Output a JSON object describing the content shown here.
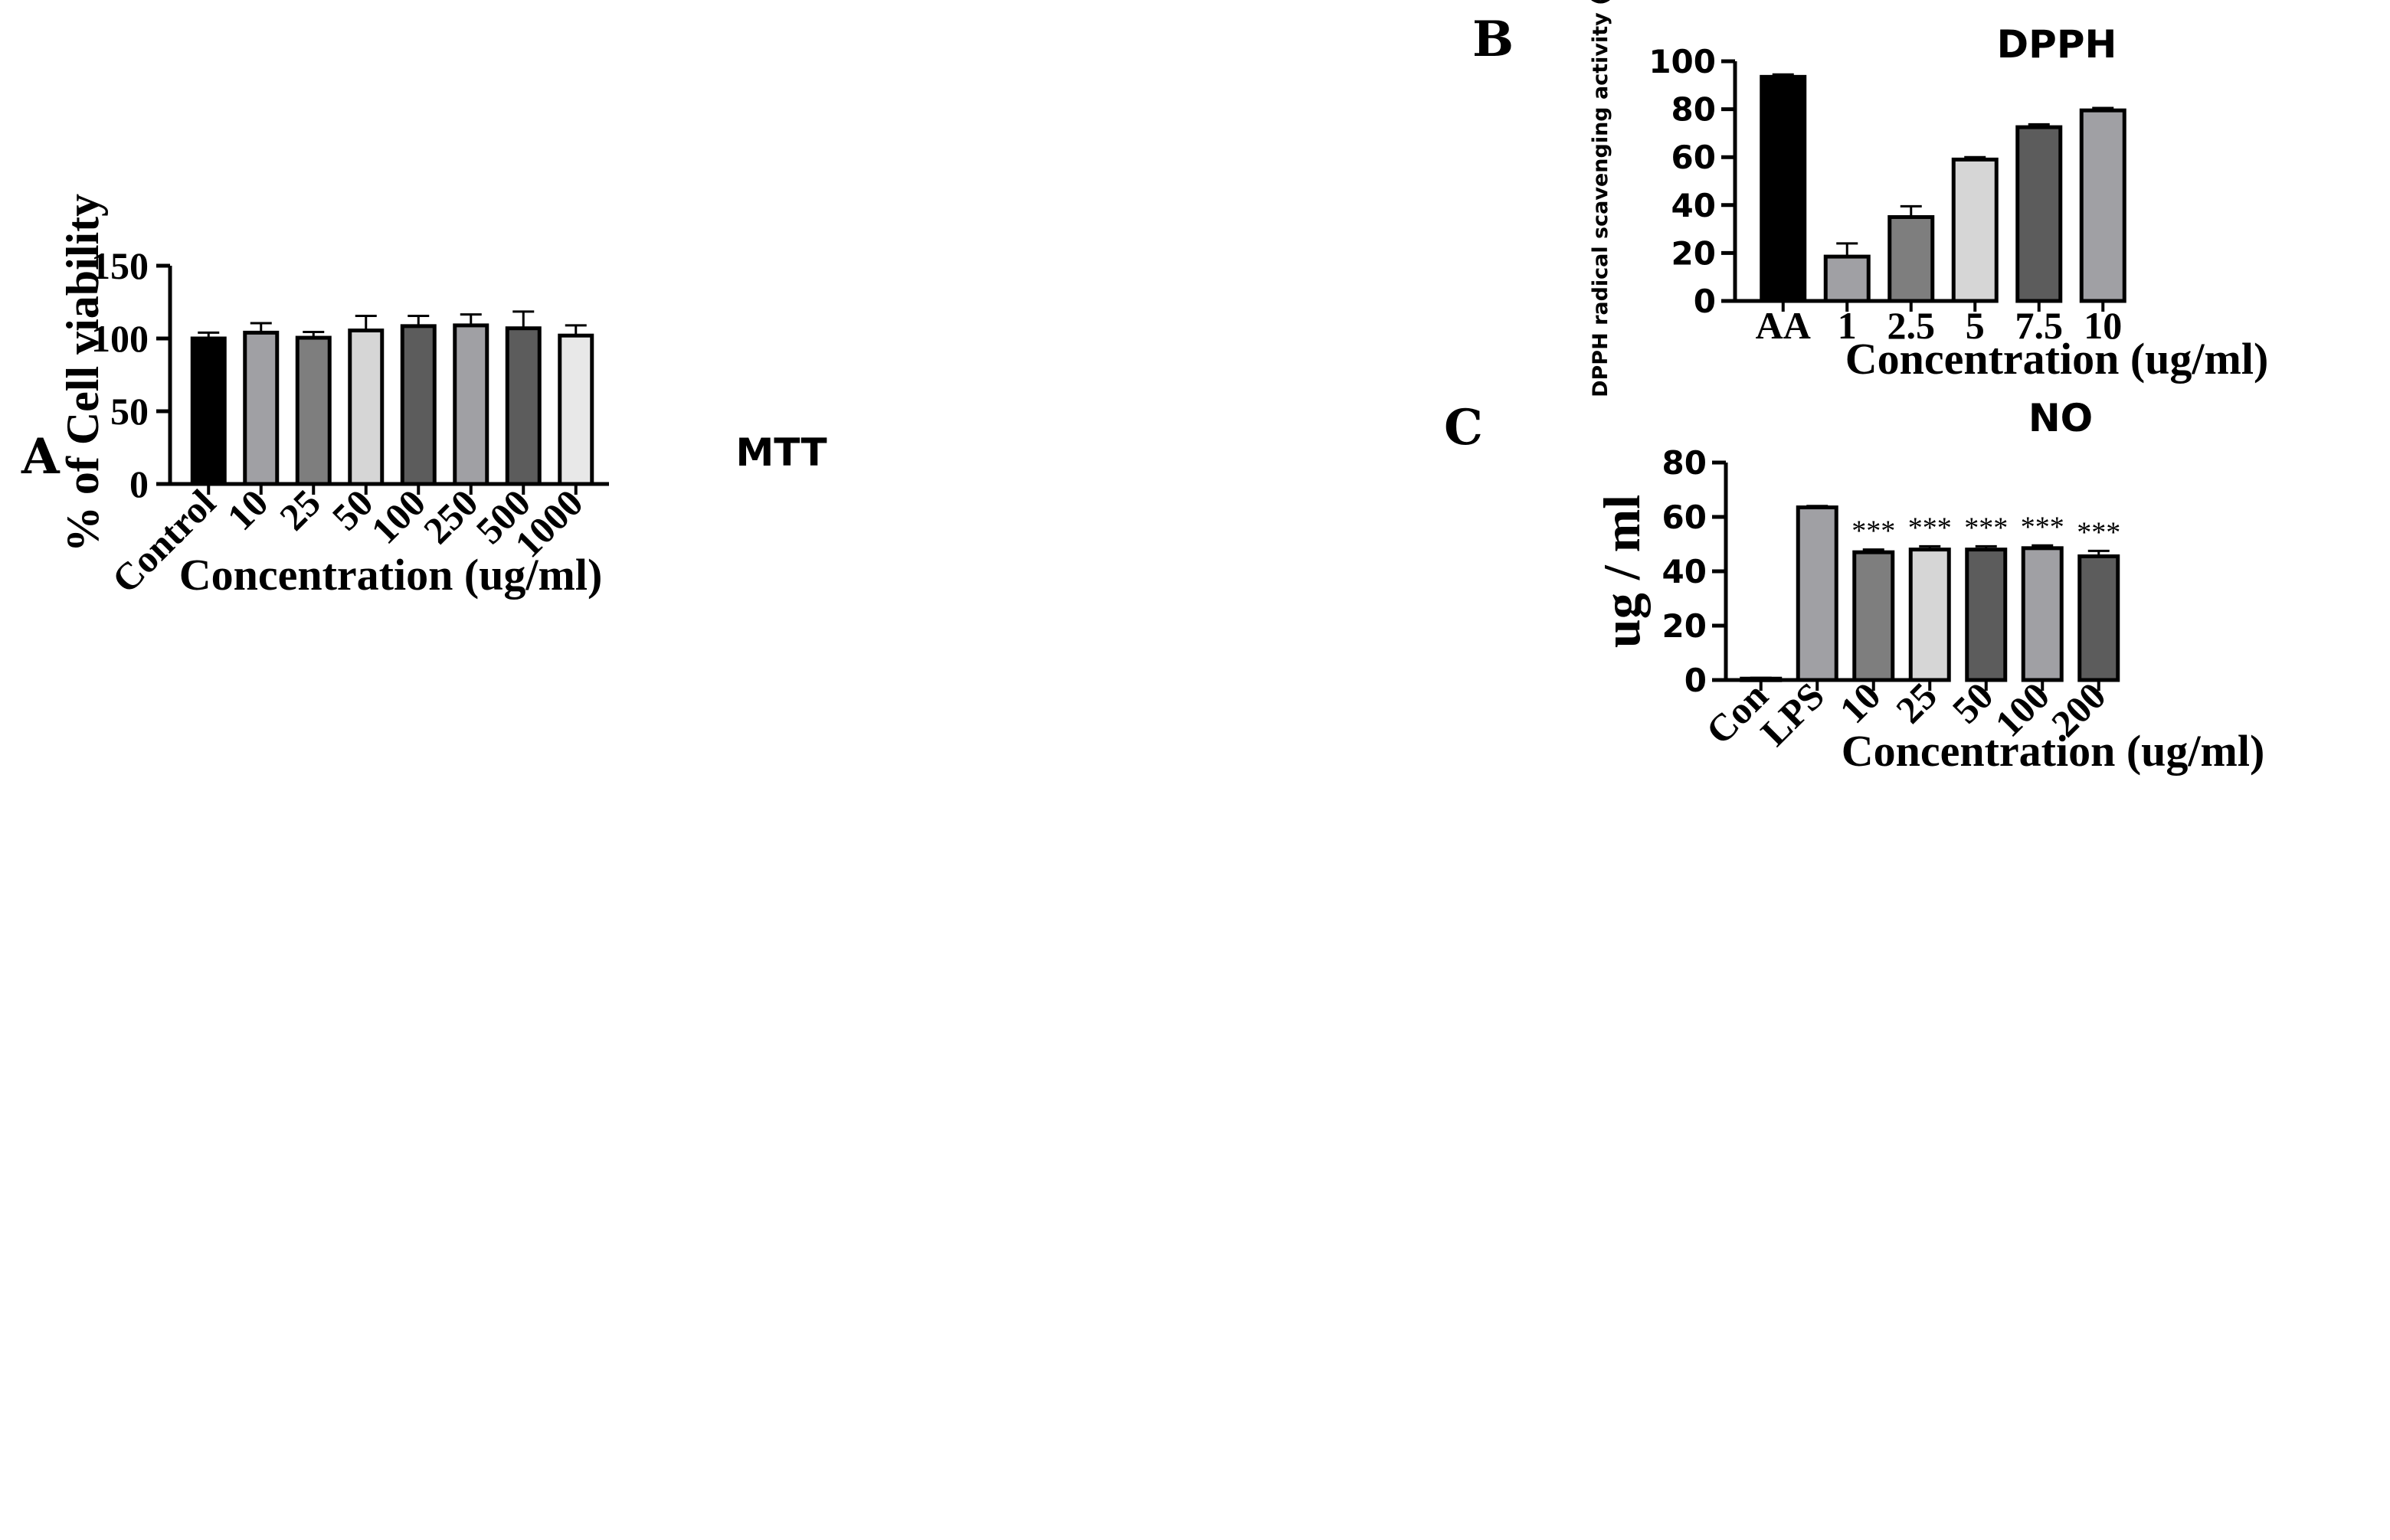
{
  "chart_data": [
    {
      "id": "A",
      "panel_label": "A",
      "type": "bar",
      "title": "MTT",
      "xlabel": "Concentration (ug/ml)",
      "ylabel": "% of Cell viability",
      "ylim": [
        0,
        150
      ],
      "yticks": [
        0,
        50,
        100,
        150
      ],
      "categories": [
        "Control",
        "10",
        "25",
        "50",
        "100",
        "250",
        "500",
        "1000"
      ],
      "values": [
        100,
        104,
        100.5,
        105.5,
        108.5,
        109,
        107,
        102
      ],
      "errors": [
        4,
        6.5,
        4,
        10,
        7,
        7.5,
        11.5,
        7
      ],
      "colors": [
        "#000000",
        "#a0a0a4",
        "#7e7e7e",
        "#d6d6d6",
        "#5c5c5c",
        "#a0a0a4",
        "#5c5c5c",
        "#e8e8e8"
      ]
    },
    {
      "id": "B",
      "panel_label": "B",
      "type": "bar",
      "title": "DPPH",
      "xlabel": "Concentration (ug/ml)",
      "ylabel": "DPPH radical scavenging activity (%)",
      "ylim": [
        0,
        100
      ],
      "yticks": [
        0,
        20,
        40,
        60,
        80,
        100
      ],
      "categories": [
        "AA",
        "1",
        "2.5",
        "5",
        "7.5",
        "10"
      ],
      "values": [
        93.5,
        18.5,
        35,
        59,
        72.5,
        79.5
      ],
      "errors": [
        1,
        5.5,
        4.5,
        1,
        1.2,
        1
      ],
      "colors": [
        "#000000",
        "#a0a0a4",
        "#7e7e7e",
        "#d6d6d6",
        "#5c5c5c",
        "#a0a0a4"
      ]
    },
    {
      "id": "C",
      "panel_label": "C",
      "type": "bar",
      "title": "NO",
      "xlabel": "Concentration (ug/ml)",
      "ylabel": "ug / ml",
      "ylim": [
        0,
        80
      ],
      "yticks": [
        0,
        20,
        40,
        60,
        80
      ],
      "categories": [
        "Con",
        "LPS",
        "10",
        "25",
        "50",
        "100",
        "200"
      ],
      "values": [
        0.5,
        63.5,
        47,
        48,
        48,
        48.5,
        45.5
      ],
      "errors": [
        0.3,
        0.5,
        1,
        1.2,
        1.2,
        1,
        2
      ],
      "annotations": [
        "",
        "",
        "***",
        "***",
        "***",
        "***",
        "***"
      ],
      "colors": [
        "#000000",
        "#a0a0a4",
        "#7e7e7e",
        "#d6d6d6",
        "#5c5c5c",
        "#a0a0a4",
        "#5c5c5c"
      ]
    }
  ]
}
